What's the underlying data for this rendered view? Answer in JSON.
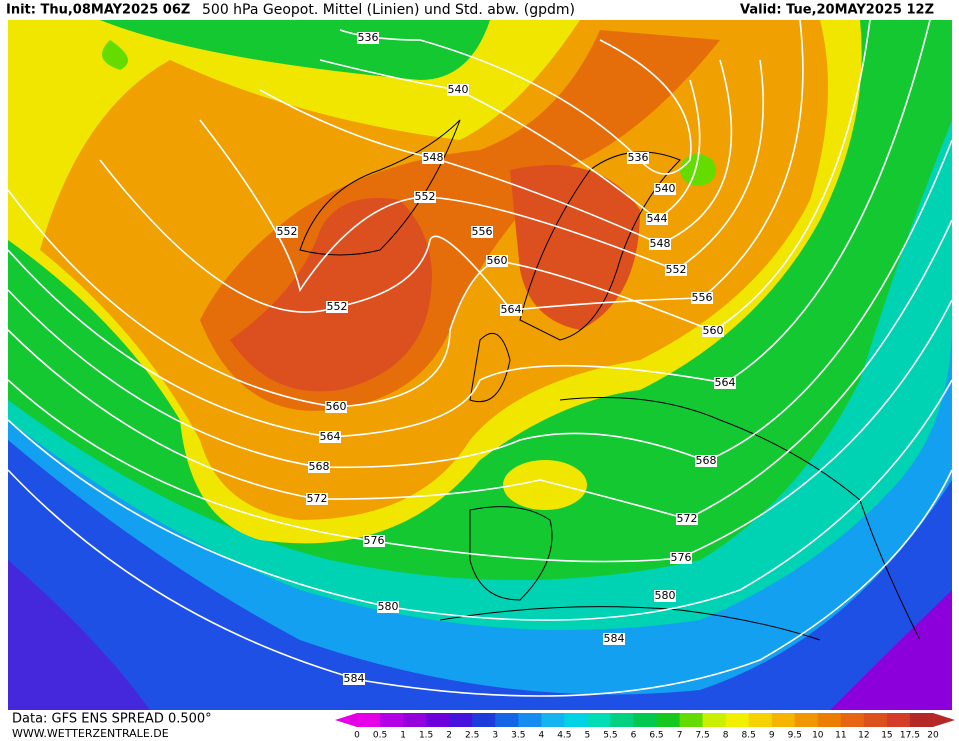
{
  "header": {
    "init": "Init: Thu,08MAY2025 06Z",
    "title": "500 hPa Geopot. Mittel (Linien) und Std. abw. (gpdm)",
    "valid": "Valid: Tue,20MAY2025 12Z"
  },
  "contour_labels": [
    "536",
    "540",
    "548",
    "552",
    "552",
    "556",
    "560",
    "552",
    "564",
    "560",
    "564",
    "568",
    "572",
    "576",
    "580",
    "584",
    "536",
    "540",
    "544",
    "548",
    "552",
    "556",
    "560",
    "564",
    "568",
    "572",
    "576",
    "580",
    "584"
  ],
  "legend": {
    "labels": [
      "0",
      "0.5",
      "1",
      "1.5",
      "2",
      "2.5",
      "3",
      "3.5",
      "4",
      "4.5",
      "5",
      "5.5",
      "6",
      "6.5",
      "7",
      "7.5",
      "8",
      "8.5",
      "9",
      "9.5",
      "10",
      "11",
      "12",
      "15",
      "17.5",
      "20"
    ],
    "colors": [
      "#e600e6",
      "#b400e6",
      "#9600dc",
      "#6e00dc",
      "#4614dc",
      "#1e3cdc",
      "#1464e6",
      "#148cf0",
      "#14b4f0",
      "#00d2e6",
      "#00dcb4",
      "#00d282",
      "#00c850",
      "#14c81e",
      "#64dc00",
      "#c8f000",
      "#f0f000",
      "#f5d200",
      "#f5b400",
      "#f09600",
      "#eb7d00",
      "#e66414",
      "#dc501e",
      "#d23c28",
      "#b42828"
    ]
  },
  "footer": {
    "data": "Data: GFS ENS SPREAD 0.500°",
    "site": "WWW.WETTERZENTRALE.DE"
  }
}
